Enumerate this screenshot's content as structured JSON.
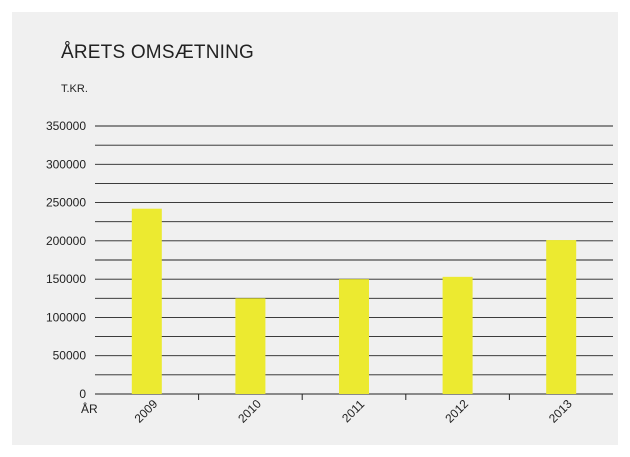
{
  "chart_data": {
    "type": "bar",
    "title": "ÅRETS OMSÆTNING",
    "ylabel": "T.KR.",
    "xlabel": "ÅR",
    "categories": [
      "2009",
      "2010",
      "2011",
      "2012",
      "2013"
    ],
    "values": [
      242000,
      125000,
      150000,
      153000,
      201000
    ],
    "ylim": [
      0,
      350000
    ],
    "y_ticks": [
      "0",
      "50000",
      "100000",
      "150000",
      "200000",
      "250000",
      "300000",
      "350000"
    ],
    "y_tick_values": [
      0,
      50000,
      100000,
      150000,
      200000,
      250000,
      300000,
      350000
    ],
    "grid": true,
    "gridline_step": 25000,
    "bar_color": "#ecea30",
    "line_color": "#222222",
    "background_color": "#f0f0f0"
  }
}
